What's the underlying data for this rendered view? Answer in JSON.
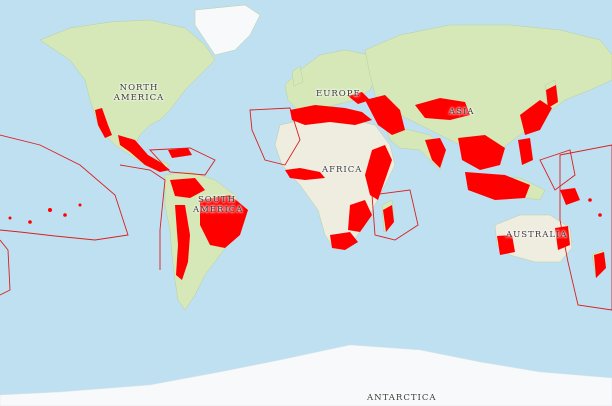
{
  "map": {
    "colors": {
      "ocean": "#bfe0f0",
      "ocean_deep": "#a8d3ea",
      "land": "#d6e8b8",
      "land_dry": "#efece0",
      "ice": "#f7f9fa",
      "highlight": "#ff0000",
      "outline": "#d82020"
    },
    "labels": {
      "north_america": "NORTH AMERICA",
      "south_america": "SOUTH AMERICA",
      "europe": "EUROPE",
      "africa": "AFRICA",
      "asia": "ASIA",
      "australia": "AUSTRALIA",
      "antarctica": "ANTARCTICA"
    }
  }
}
